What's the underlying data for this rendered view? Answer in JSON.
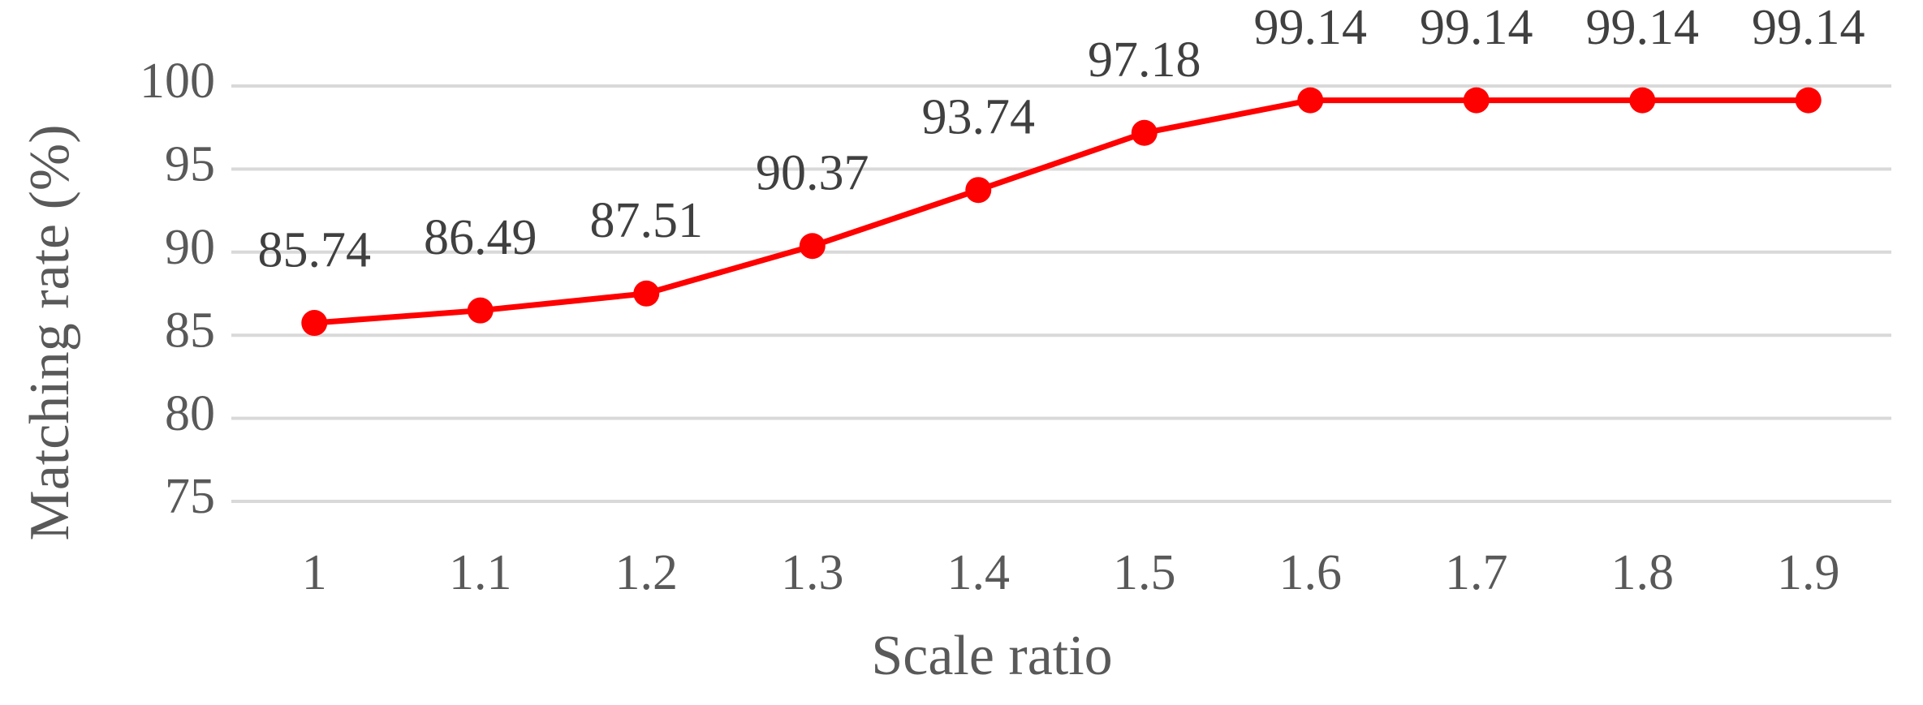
{
  "chart_data": {
    "type": "line",
    "x_label": "Scale ratio",
    "y_label": "Matching rate (%)",
    "categories": [
      "1",
      "1.1",
      "1.2",
      "1.3",
      "1.4",
      "1.5",
      "1.6",
      "1.7",
      "1.8",
      "1.9"
    ],
    "values": [
      85.74,
      86.49,
      87.51,
      90.37,
      93.74,
      97.18,
      99.14,
      99.14,
      99.14,
      99.14
    ],
    "color": "#ff0000",
    "ylim": [
      75,
      100
    ],
    "yticks": [
      75,
      80,
      85,
      90,
      95,
      100
    ],
    "grid": true
  }
}
